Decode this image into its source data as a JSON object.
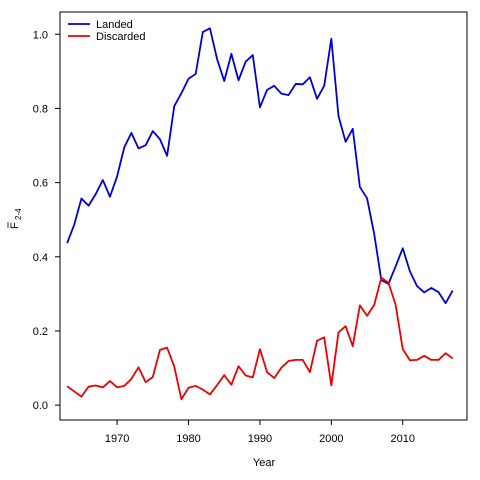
{
  "chart_data": {
    "type": "line",
    "title": "",
    "xlabel": "Year",
    "ylabel_main": "F",
    "ylabel_sub": "2-4",
    "xlim": [
      1962,
      2019
    ],
    "ylim": [
      -0.04,
      1.06
    ],
    "xticks": [
      1970,
      1980,
      1990,
      2000,
      2010
    ],
    "yticks": [
      0.0,
      0.2,
      0.4,
      0.6,
      0.8,
      1.0
    ],
    "ytick_labels": [
      "0.0",
      "0.2",
      "0.4",
      "0.6",
      "0.8",
      "1.0"
    ],
    "grid": false,
    "legend_position": "top-left",
    "x": [
      1963,
      1964,
      1965,
      1966,
      1967,
      1968,
      1969,
      1970,
      1971,
      1972,
      1973,
      1974,
      1975,
      1976,
      1977,
      1978,
      1979,
      1980,
      1981,
      1982,
      1983,
      1984,
      1985,
      1986,
      1987,
      1988,
      1989,
      1990,
      1991,
      1992,
      1993,
      1994,
      1995,
      1996,
      1997,
      1998,
      1999,
      2000,
      2001,
      2002,
      2003,
      2004,
      2005,
      2006,
      2007,
      2008,
      2009,
      2010,
      2011,
      2012,
      2013,
      2014,
      2015,
      2016,
      2017
    ],
    "series": [
      {
        "name": "Landed",
        "color": "#0000dd",
        "values": [
          0.437,
          0.487,
          0.557,
          0.538,
          0.569,
          0.607,
          0.562,
          0.617,
          0.695,
          0.734,
          0.692,
          0.701,
          0.739,
          0.717,
          0.672,
          0.806,
          0.841,
          0.88,
          0.893,
          1.006,
          1.016,
          0.933,
          0.874,
          0.947,
          0.876,
          0.926,
          0.944,
          0.803,
          0.85,
          0.861,
          0.84,
          0.836,
          0.866,
          0.865,
          0.884,
          0.826,
          0.861,
          0.988,
          0.78,
          0.71,
          0.745,
          0.588,
          0.558,
          0.462,
          0.337,
          0.327,
          0.374,
          0.423,
          0.361,
          0.321,
          0.304,
          0.316,
          0.305,
          0.275,
          0.309
        ]
      },
      {
        "name": "Discarded",
        "color": "#ee0000",
        "values": [
          0.051,
          0.037,
          0.023,
          0.05,
          0.053,
          0.048,
          0.065,
          0.048,
          0.052,
          0.071,
          0.102,
          0.062,
          0.076,
          0.149,
          0.155,
          0.104,
          0.016,
          0.047,
          0.052,
          0.042,
          0.029,
          0.054,
          0.081,
          0.055,
          0.105,
          0.08,
          0.075,
          0.151,
          0.089,
          0.073,
          0.101,
          0.119,
          0.122,
          0.122,
          0.089,
          0.174,
          0.183,
          0.053,
          0.196,
          0.213,
          0.159,
          0.269,
          0.241,
          0.27,
          0.344,
          0.33,
          0.271,
          0.151,
          0.121,
          0.122,
          0.133,
          0.122,
          0.122,
          0.14,
          0.126
        ]
      }
    ]
  }
}
